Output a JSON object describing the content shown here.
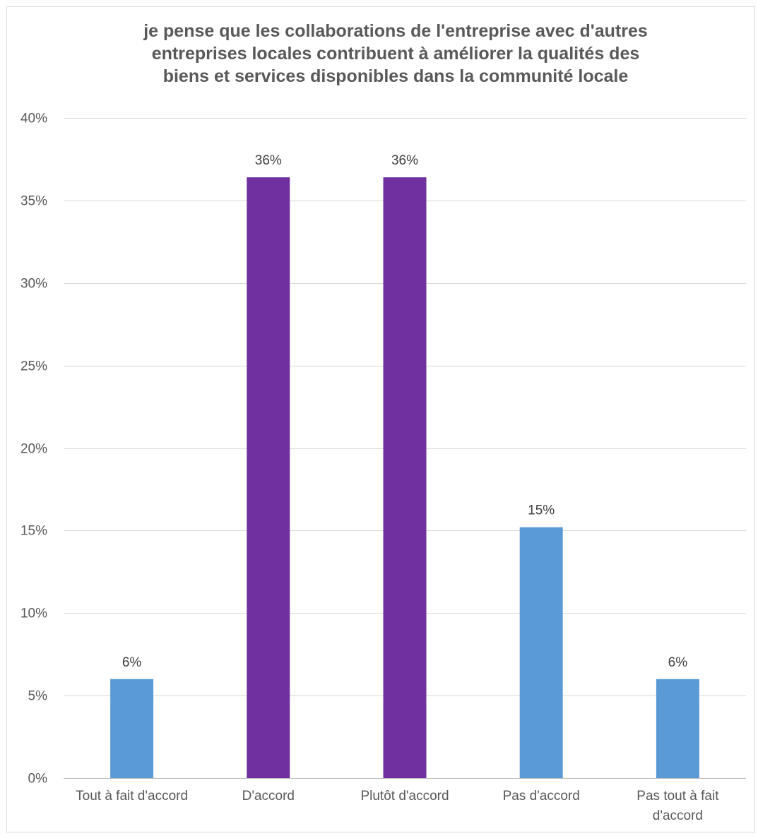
{
  "chart_data": {
    "type": "bar",
    "title_lines": [
      "je pense que les collaborations de l'entreprise avec d'autres",
      "entreprises locales contribuent à améliorer la qualités des",
      "biens et services disponibles dans la communité locale"
    ],
    "categories": [
      [
        "Tout à fait d'accord"
      ],
      [
        "D'accord"
      ],
      [
        "Plutôt d'accord"
      ],
      [
        "Pas d'accord"
      ],
      [
        "Pas tout à fait",
        "d'accord"
      ]
    ],
    "values": [
      6,
      36.4,
      36.4,
      15.2,
      6
    ],
    "data_labels": [
      "6%",
      "36%",
      "36%",
      "15%",
      "6%"
    ],
    "bar_colors": [
      "#5b9bd5",
      "#7030a0",
      "#7030a0",
      "#5b9bd5",
      "#5b9bd5"
    ],
    "ylim": [
      0,
      40
    ],
    "yticks": [
      0,
      5,
      10,
      15,
      20,
      25,
      30,
      35,
      40
    ],
    "ytick_labels": [
      "0%",
      "5%",
      "10%",
      "15%",
      "20%",
      "25%",
      "30%",
      "35%",
      "40%"
    ],
    "grid": true,
    "legend": "none",
    "xlabel": "",
    "ylabel": ""
  }
}
